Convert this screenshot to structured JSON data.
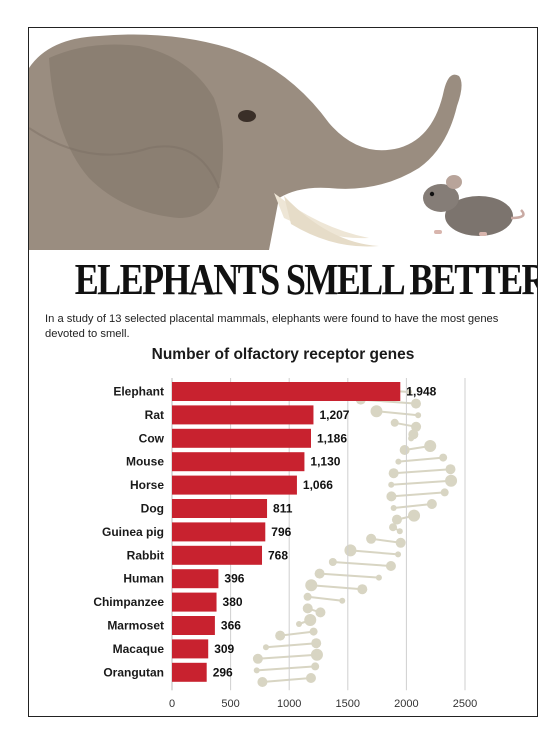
{
  "headline": "ELEPHANTS SMELL BETTER THAN RATS",
  "intro": "In a study of 13 selected placental mammals, elephants were found to have the most genes devoted to smell.",
  "colors": {
    "bar": "#c8222f",
    "grid": "#cfcfcf",
    "dna": "#d8d5c3"
  },
  "chart_data": {
    "type": "bar",
    "orientation": "horizontal",
    "title": "Number of olfactory receptor genes",
    "categories": [
      "Elephant",
      "Rat",
      "Cow",
      "Mouse",
      "Horse",
      "Dog",
      "Guinea pig",
      "Rabbit",
      "Human",
      "Chimpanzee",
      "Marmoset",
      "Macaque",
      "Orangutan"
    ],
    "values": [
      1948,
      1207,
      1186,
      1130,
      1066,
      811,
      796,
      768,
      396,
      380,
      366,
      309,
      296
    ],
    "value_labels": [
      "1,948",
      "1,207",
      "1,186",
      "1,130",
      "1,066",
      "811",
      "796",
      "768",
      "396",
      "380",
      "366",
      "309",
      "296"
    ],
    "xlim": [
      0,
      2500
    ],
    "xticks": [
      0,
      500,
      1000,
      1500,
      2000,
      2500
    ],
    "grid": true
  }
}
